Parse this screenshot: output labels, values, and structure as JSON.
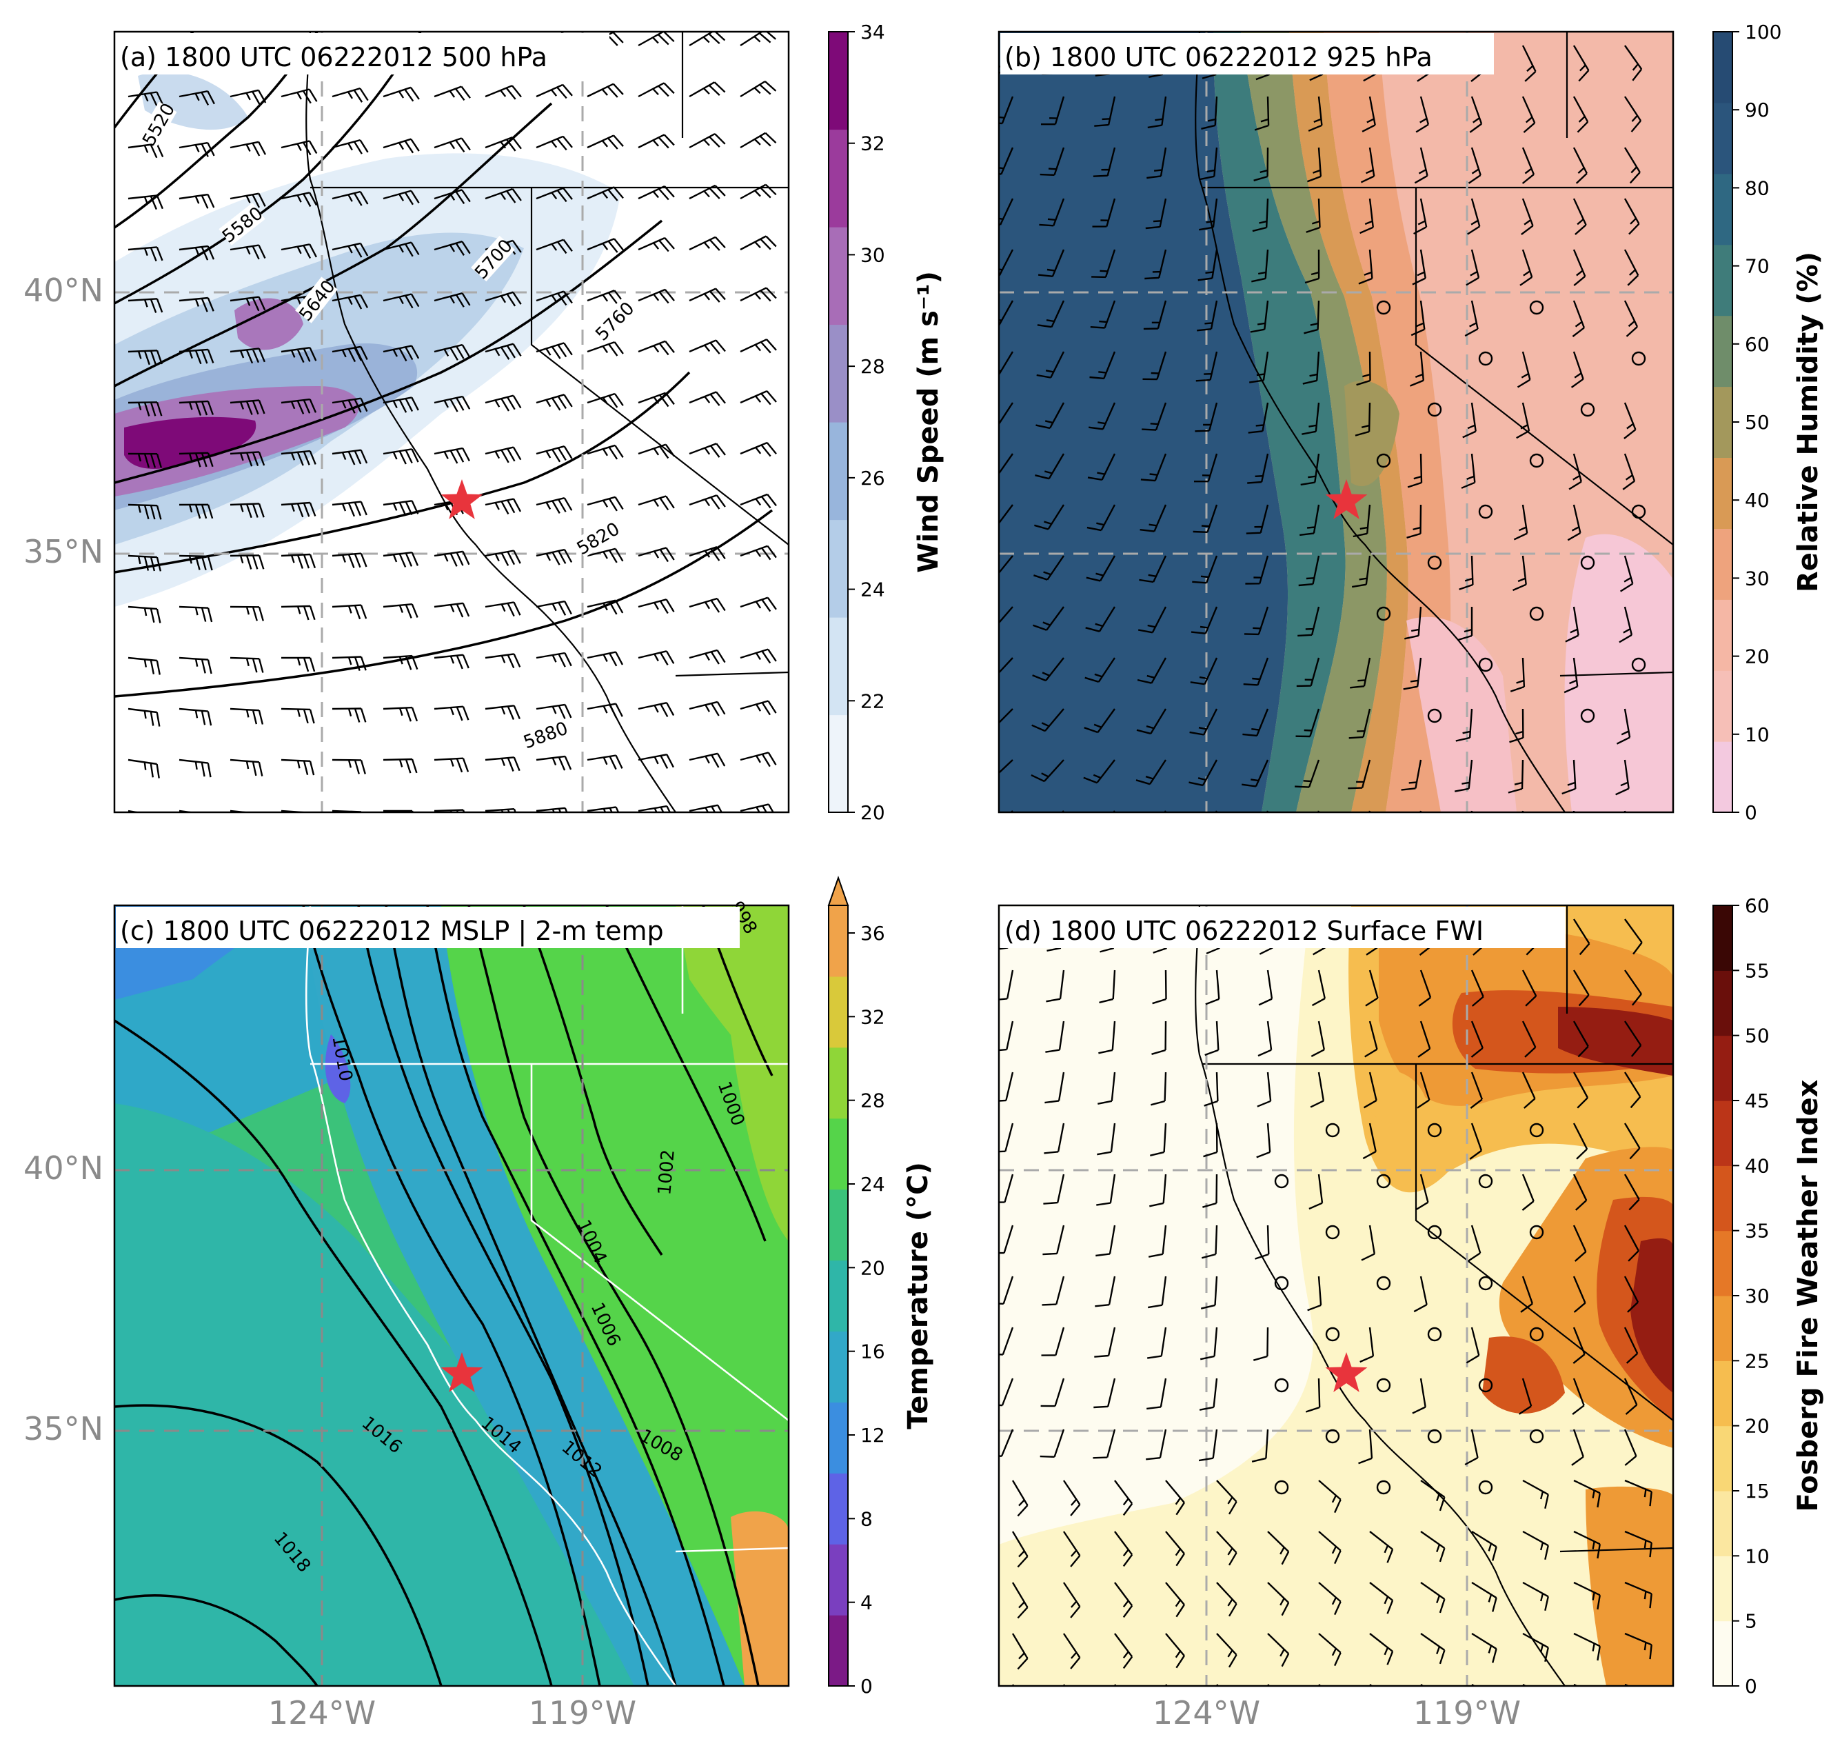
{
  "panels": [
    {
      "id": "a",
      "title": "(a) 1800 UTC 06222012 500 hPa",
      "colorbar": {
        "label": "Wind Speed (m s⁻¹)",
        "ticks": [
          "20",
          "22",
          "24",
          "26",
          "28",
          "30",
          "32",
          "34"
        ],
        "colors": [
          "#eef4fa",
          "#d3e4f3",
          "#b4cde8",
          "#98b5dc",
          "#9a8fc7",
          "#a86db7",
          "#9b3b9c",
          "#7e0a78"
        ]
      },
      "contour_labels": [
        "5520",
        "5580",
        "5640",
        "5700",
        "5760",
        "5820",
        "5880"
      ],
      "lat_labels": [
        "40°N",
        "35°N"
      ],
      "lon_labels": []
    },
    {
      "id": "b",
      "title": "(b) 1800 UTC 06222012 925 hPa",
      "colorbar": {
        "label": "Relative Humidity (%)",
        "ticks": [
          "0",
          "10",
          "20",
          "30",
          "40",
          "50",
          "60",
          "70",
          "80",
          "90",
          "100"
        ],
        "colors": [
          "#f3c9df",
          "#f6bfb7",
          "#f5b7a5",
          "#eea37d",
          "#d99a55",
          "#a3985c",
          "#6f8d6a",
          "#3f7c7a",
          "#2f6882",
          "#2b557c",
          "#264b73"
        ]
      },
      "contour_labels": [],
      "lat_labels": [],
      "lon_labels": []
    },
    {
      "id": "c",
      "title": "(c) 1800 UTC 06222012 MSLP | 2-m temp",
      "colorbar": {
        "label": "Temperature (°C)",
        "ticks": [
          "0",
          "4",
          "8",
          "12",
          "16",
          "20",
          "24",
          "28",
          "32",
          "36"
        ],
        "colors": [
          "#7b1a86",
          "#7a3fbf",
          "#5e63e6",
          "#3b8ee0",
          "#32a8c8",
          "#2fb6a8",
          "#3bc27a",
          "#55d44a",
          "#8fd638",
          "#d9c93a",
          "#f0a34a"
        ]
      },
      "contour_labels": [
        "998",
        "1000",
        "1002",
        "1004",
        "1006",
        "1008",
        "1010",
        "1012",
        "1014",
        "1016",
        "1018"
      ],
      "lat_labels": [
        "40°N",
        "35°N"
      ],
      "lon_labels": [
        "124°W",
        "119°W"
      ]
    },
    {
      "id": "d",
      "title": "(d) 1800 UTC 06222012 Surface FWI",
      "colorbar": {
        "label": "Fosberg Fire Weather Index",
        "ticks": [
          "0",
          "5",
          "10",
          "15",
          "20",
          "25",
          "30",
          "35",
          "40",
          "45",
          "50",
          "55",
          "60"
        ],
        "colors": [
          "#fefcf0",
          "#fdf5c8",
          "#fbe7a0",
          "#f9d775",
          "#f6bd4f",
          "#ee9a36",
          "#e57827",
          "#d4561c",
          "#bb3518",
          "#951d12",
          "#6a0f0b",
          "#3a0705"
        ]
      },
      "contour_labels": [],
      "lat_labels": [],
      "lon_labels": [
        "124°W",
        "119°W"
      ]
    }
  ],
  "marker": {
    "name": "star",
    "color": "#e8343c"
  }
}
